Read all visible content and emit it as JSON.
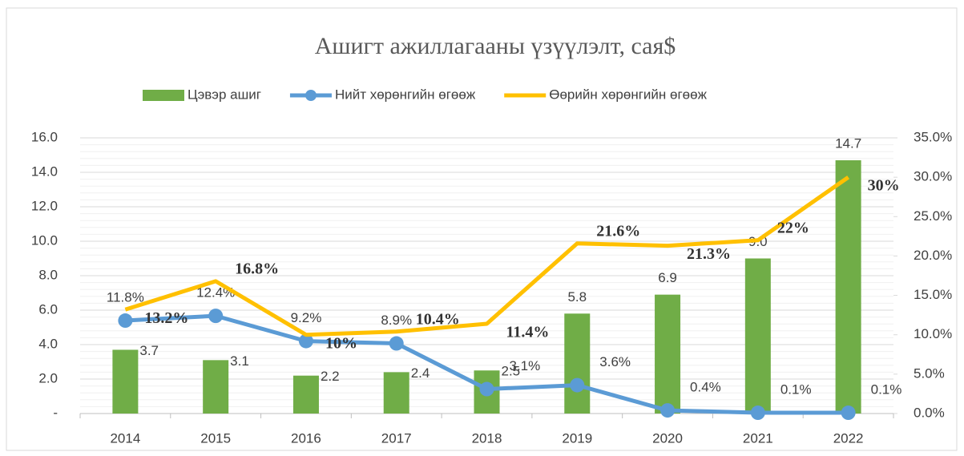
{
  "chart_data": {
    "type": "bar-line",
    "title": "Ашигт ажиллагааны үзүүлэлт, сая$",
    "categories": [
      "2014",
      "2015",
      "2016",
      "2017",
      "2018",
      "2019",
      "2020",
      "2021",
      "2022"
    ],
    "series": [
      {
        "name": "Цэвэр ашиг",
        "type": "bar",
        "color": "#70ad47",
        "values": [
          3.7,
          3.1,
          2.2,
          2.4,
          2.5,
          5.8,
          6.9,
          9.0,
          14.7
        ],
        "value_labels": [
          "3.7",
          "3.1",
          "2.2",
          "2.4",
          "2.5",
          "5.8",
          "6.9",
          "9.0",
          "14.7"
        ]
      },
      {
        "name": "Нийт хөрөнгийн өгөөж",
        "type": "line",
        "axis": "y2",
        "markers": true,
        "color": "#5b9bd5",
        "values": [
          11.8,
          12.4,
          9.2,
          8.9,
          3.1,
          3.6,
          0.4,
          0.1,
          0.1
        ],
        "value_labels": [
          "11.8%",
          "12.4%",
          "9.2%",
          "8.9%",
          "3.1%",
          "3.6%",
          "0.4%",
          "0.1%",
          "0.1%"
        ]
      },
      {
        "name": "Өөрийн хөрөнгийн өгөөж",
        "type": "line",
        "axis": "y2",
        "markers": false,
        "color": "#ffc000",
        "values": [
          13.2,
          16.8,
          10,
          10.4,
          11.4,
          21.6,
          21.3,
          22,
          30
        ],
        "value_labels": [
          "13.2%",
          "16.8%",
          "10%",
          "10.4%",
          "11.4%",
          "21.6%",
          "21.3%",
          "22%",
          "30%"
        ]
      }
    ],
    "ylim": [
      0,
      16
    ],
    "yticks": [
      {
        "value": 0,
        "label": "-"
      },
      {
        "value": 2,
        "label": "2.0"
      },
      {
        "value": 4,
        "label": "4.0"
      },
      {
        "value": 6,
        "label": "6.0"
      },
      {
        "value": 8,
        "label": "8.0"
      },
      {
        "value": 10,
        "label": "10.0"
      },
      {
        "value": 12,
        "label": "12.0"
      },
      {
        "value": 14,
        "label": "14.0"
      },
      {
        "value": 16,
        "label": "16.0"
      }
    ],
    "y2lim": [
      0,
      35
    ],
    "y2ticks": [
      {
        "value": 0,
        "label": "0.0%"
      },
      {
        "value": 5,
        "label": "5.0%"
      },
      {
        "value": 10,
        "label": "10.0%"
      },
      {
        "value": 15,
        "label": "15.0%"
      },
      {
        "value": 20,
        "label": "20.0%"
      },
      {
        "value": 25,
        "label": "25.0%"
      },
      {
        "value": 30,
        "label": "30.0%"
      },
      {
        "value": 35,
        "label": "35.0%"
      }
    ],
    "grid": true,
    "legend": "top"
  }
}
